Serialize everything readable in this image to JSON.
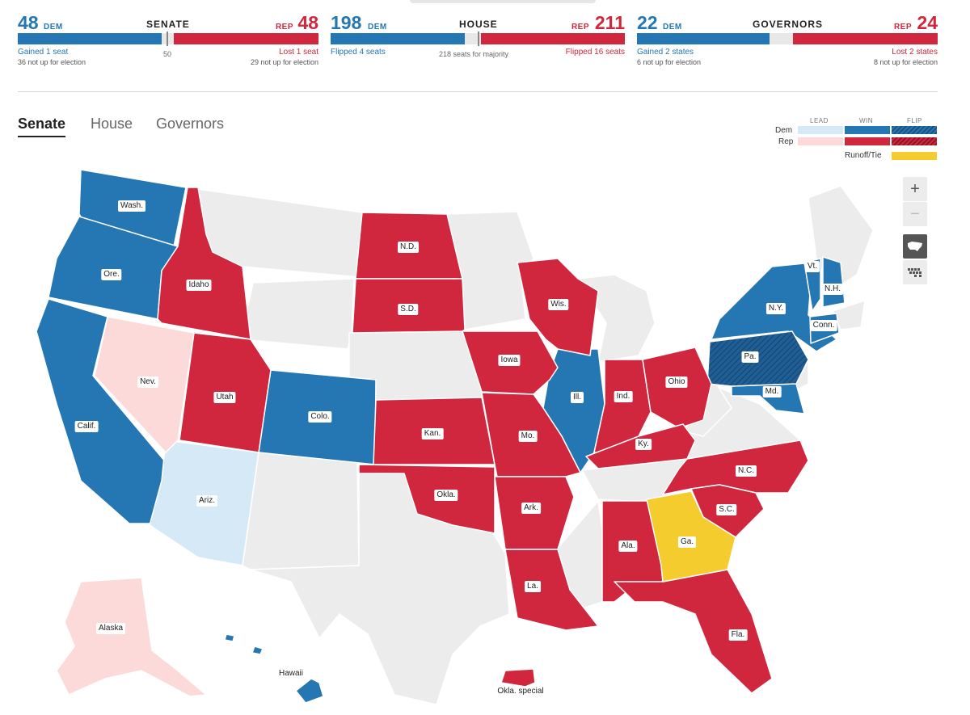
{
  "scoreboard": {
    "senate": {
      "title": "SENATE",
      "dem_count": "48",
      "dem_tag": "DEM",
      "rep_count": "48",
      "rep_tag": "REP",
      "midline": "50",
      "dem_change": "Gained 1 seat",
      "dem_note": "36 not up for election",
      "rep_change": "Lost 1 seat",
      "rep_note": "29 not up for election"
    },
    "house": {
      "title": "HOUSE",
      "dem_count": "198",
      "dem_tag": "DEM",
      "rep_count": "211",
      "rep_tag": "REP",
      "midline": "218 seats for majority",
      "dem_change": "Flipped 4 seats",
      "rep_change": "Flipped 16 seats"
    },
    "governors": {
      "title": "GOVERNORS",
      "dem_count": "22",
      "dem_tag": "DEM",
      "rep_count": "24",
      "rep_tag": "REP",
      "dem_change": "Gained 2 states",
      "dem_note": "6 not up for election",
      "rep_change": "Lost 2 states",
      "rep_note": "8 not up for election"
    }
  },
  "tabs": [
    {
      "label": "Senate",
      "active": true
    },
    {
      "label": "House",
      "active": false
    },
    {
      "label": "Governors",
      "active": false
    }
  ],
  "legend": {
    "columns": [
      "LEAD",
      "WIN",
      "FLIP"
    ],
    "rows": [
      "Dem",
      "Rep"
    ],
    "runoff_label": "Runoff/Tie"
  },
  "colors": {
    "dem_win": "#2477b3",
    "dem_lead": "#d6e9f7",
    "rep_win": "#d0263e",
    "rep_lead": "#fcdada",
    "runoff": "#f5cc2e",
    "no_race": "#ececec",
    "dem_flip": "#1b5283"
  },
  "controls": {
    "zoom_in": "+",
    "zoom_out": "−",
    "us_map_icon": "us-map-icon",
    "cartogram_icon": "cartogram-icon"
  },
  "map": {
    "labels": {
      "wa": "Wash.",
      "or": "Ore.",
      "ca": "Calif.",
      "id": "Idaho",
      "nv": "Nev.",
      "ut": "Utah",
      "az": "Ariz.",
      "co": "Colo.",
      "nd": "N.D.",
      "sd": "S.D.",
      "ks": "Kan.",
      "ok": "Okla.",
      "ia": "Iowa",
      "mo": "Mo.",
      "ar": "Ark.",
      "la": "La.",
      "wi": "Wis.",
      "il": "Ill.",
      "in": "Ind.",
      "oh": "Ohio",
      "ky": "Ky.",
      "ny": "N.Y.",
      "vt": "Vt.",
      "nh": "N.H.",
      "ct": "Conn.",
      "pa": "Pa.",
      "md": "Md.",
      "nc": "N.C.",
      "sc": "S.C.",
      "ga": "Ga.",
      "al": "Ala.",
      "fl": "Fla.",
      "ak": "Alaska",
      "hi": "Hawaii",
      "ok_special": "Okla. special"
    }
  }
}
